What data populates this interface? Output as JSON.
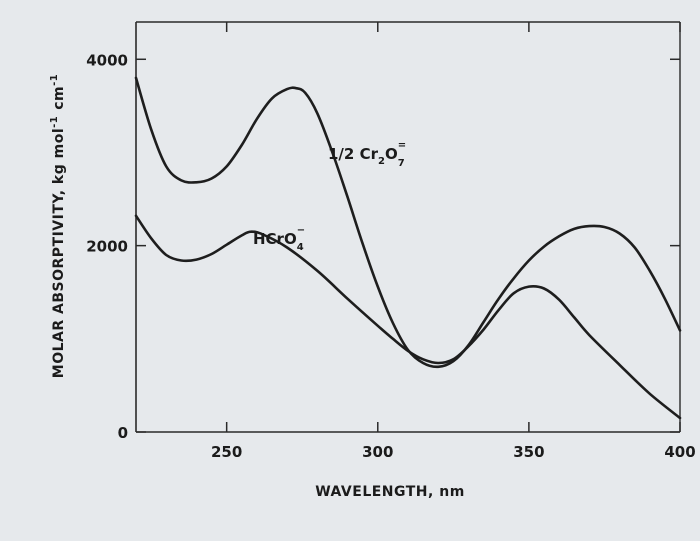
{
  "chart_data": {
    "type": "line",
    "xlabel": "WAVELENGTH, nm",
    "ylabel_parts": {
      "main": "MOLAR ABSORPTIVITY, kg mol",
      "exp1": "-1",
      "unit": "cm",
      "exp2": "-1"
    },
    "xlim": [
      220,
      400
    ],
    "ylim": [
      0,
      4400
    ],
    "x_ticks": [
      250,
      300,
      350,
      400
    ],
    "x_tick_labels": [
      "250",
      "300",
      "350",
      "400"
    ],
    "y_ticks": [
      0,
      2000,
      4000
    ],
    "y_tick_labels": [
      "0",
      "2000",
      "4000"
    ],
    "grid": false,
    "series": [
      {
        "name": "1/2 Cr2O7=",
        "label_parts": {
          "pre": "1/2 Cr",
          "sub1": "2",
          "mid": "O",
          "sub2": "7",
          "sup": "="
        },
        "x": [
          220,
          225,
          230,
          235,
          240,
          245,
          250,
          255,
          260,
          265,
          270,
          273,
          276,
          280,
          285,
          290,
          295,
          300,
          305,
          310,
          315,
          320,
          325,
          330,
          335,
          340,
          345,
          350,
          355,
          360,
          365,
          370,
          375,
          380,
          385,
          390,
          395,
          400
        ],
        "y": [
          3800,
          3250,
          2850,
          2700,
          2680,
          2720,
          2850,
          3080,
          3360,
          3580,
          3680,
          3690,
          3640,
          3420,
          3000,
          2520,
          2020,
          1560,
          1170,
          880,
          740,
          700,
          760,
          930,
          1180,
          1430,
          1650,
          1840,
          1990,
          2100,
          2180,
          2210,
          2200,
          2130,
          1980,
          1730,
          1430,
          1090
        ]
      },
      {
        "name": "HCrO4-",
        "label_parts": {
          "pre": "HCrO",
          "sub": "4",
          "sup": "−"
        },
        "x": [
          220,
          225,
          230,
          235,
          240,
          245,
          250,
          255,
          258,
          262,
          270,
          280,
          290,
          300,
          305,
          310,
          315,
          320,
          325,
          330,
          335,
          340,
          345,
          350,
          355,
          360,
          365,
          370,
          380,
          390,
          400
        ],
        "y": [
          2320,
          2080,
          1900,
          1840,
          1850,
          1910,
          2010,
          2110,
          2150,
          2120,
          1980,
          1730,
          1430,
          1140,
          1000,
          870,
          780,
          740,
          780,
          920,
          1100,
          1310,
          1490,
          1560,
          1540,
          1420,
          1230,
          1040,
          720,
          410,
          150
        ]
      }
    ]
  }
}
